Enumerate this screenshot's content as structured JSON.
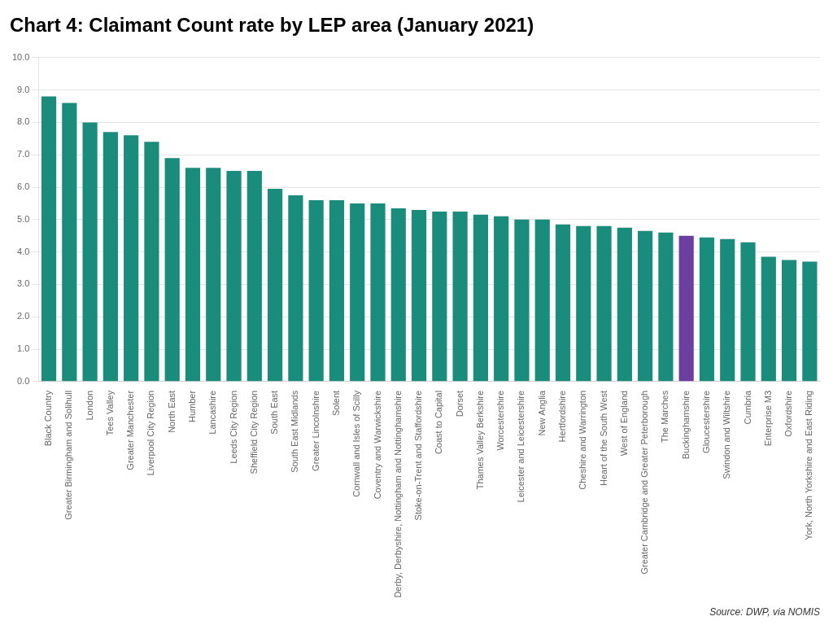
{
  "chart_data": {
    "type": "bar",
    "title": "Chart 4: Claimant Count rate by LEP area (January 2021)",
    "annotation": "Source: DWP, via NOMIS",
    "categories": [
      "Black Country",
      "Greater Birmingham and Solihull",
      "London",
      "Tees Valley",
      "Greater Manchester",
      "Liverpool City Region",
      "North East",
      "Humber",
      "Lancashire",
      "Leeds City Region",
      "Sheffield City Region",
      "South East",
      "South East Midlands",
      "Greater Lincolnshire",
      "Solent",
      "Cornwall and Isles of Scilly",
      "Coventry and Warwickshire",
      "Derby, Derbyshire, Nottingham and Nottinghamshire",
      "Stoke-on-Trent and Staffordshire",
      "Coast to Capital",
      "Dorset",
      "Thames Valley Berkshire",
      "Worcestershire",
      "Leicester and Leicestershire",
      "New Anglia",
      "Hertfordshire",
      "Cheshire and Warrington",
      "Heart of the South West",
      "West of England",
      "Greater Cambridge and Greater Peterborough",
      "The Marches",
      "Buckinghamshire",
      "Gloucestershire",
      "Swindon and Wiltshire",
      "Cumbria",
      "Enterprise M3",
      "Oxfordshire",
      "York, North Yorkshire and East Riding"
    ],
    "values": [
      8.8,
      8.6,
      8.0,
      7.7,
      7.6,
      7.4,
      6.9,
      6.6,
      6.6,
      6.5,
      6.5,
      5.95,
      5.75,
      5.6,
      5.6,
      5.5,
      5.5,
      5.35,
      5.3,
      5.25,
      5.25,
      5.15,
      5.1,
      5.0,
      5.0,
      4.85,
      4.8,
      4.8,
      4.75,
      4.65,
      4.6,
      4.5,
      4.45,
      4.4,
      4.3,
      3.85,
      3.75,
      3.7
    ],
    "colors": [
      "#1a8c7c",
      "#1a8c7c",
      "#1a8c7c",
      "#1a8c7c",
      "#1a8c7c",
      "#1a8c7c",
      "#1a8c7c",
      "#1a8c7c",
      "#1a8c7c",
      "#1a8c7c",
      "#1a8c7c",
      "#1a8c7c",
      "#1a8c7c",
      "#1a8c7c",
      "#1a8c7c",
      "#1a8c7c",
      "#1a8c7c",
      "#1a8c7c",
      "#1a8c7c",
      "#1a8c7c",
      "#1a8c7c",
      "#1a8c7c",
      "#1a8c7c",
      "#1a8c7c",
      "#1a8c7c",
      "#1a8c7c",
      "#1a8c7c",
      "#1a8c7c",
      "#1a8c7c",
      "#1a8c7c",
      "#1a8c7c",
      "#6a3fa0",
      "#1a8c7c",
      "#1a8c7c",
      "#1a8c7c",
      "#1a8c7c",
      "#1a8c7c",
      "#1a8c7c"
    ],
    "ylim": [
      0,
      10.0
    ],
    "yticks": [
      {
        "value": 0.0,
        "label": "0.0"
      },
      {
        "value": 1.0,
        "label": "1.0"
      },
      {
        "value": 2.0,
        "label": "2.0"
      },
      {
        "value": 3.0,
        "label": "3.0"
      },
      {
        "value": 4.0,
        "label": "4.0"
      },
      {
        "value": 5.0,
        "label": "5.0"
      },
      {
        "value": 6.0,
        "label": "6.0"
      },
      {
        "value": 7.0,
        "label": "7.0"
      },
      {
        "value": 8.0,
        "label": "8.0"
      },
      {
        "value": 9.0,
        "label": "9.0"
      },
      {
        "value": 10.0,
        "label": "10.0"
      }
    ],
    "grid": true
  }
}
